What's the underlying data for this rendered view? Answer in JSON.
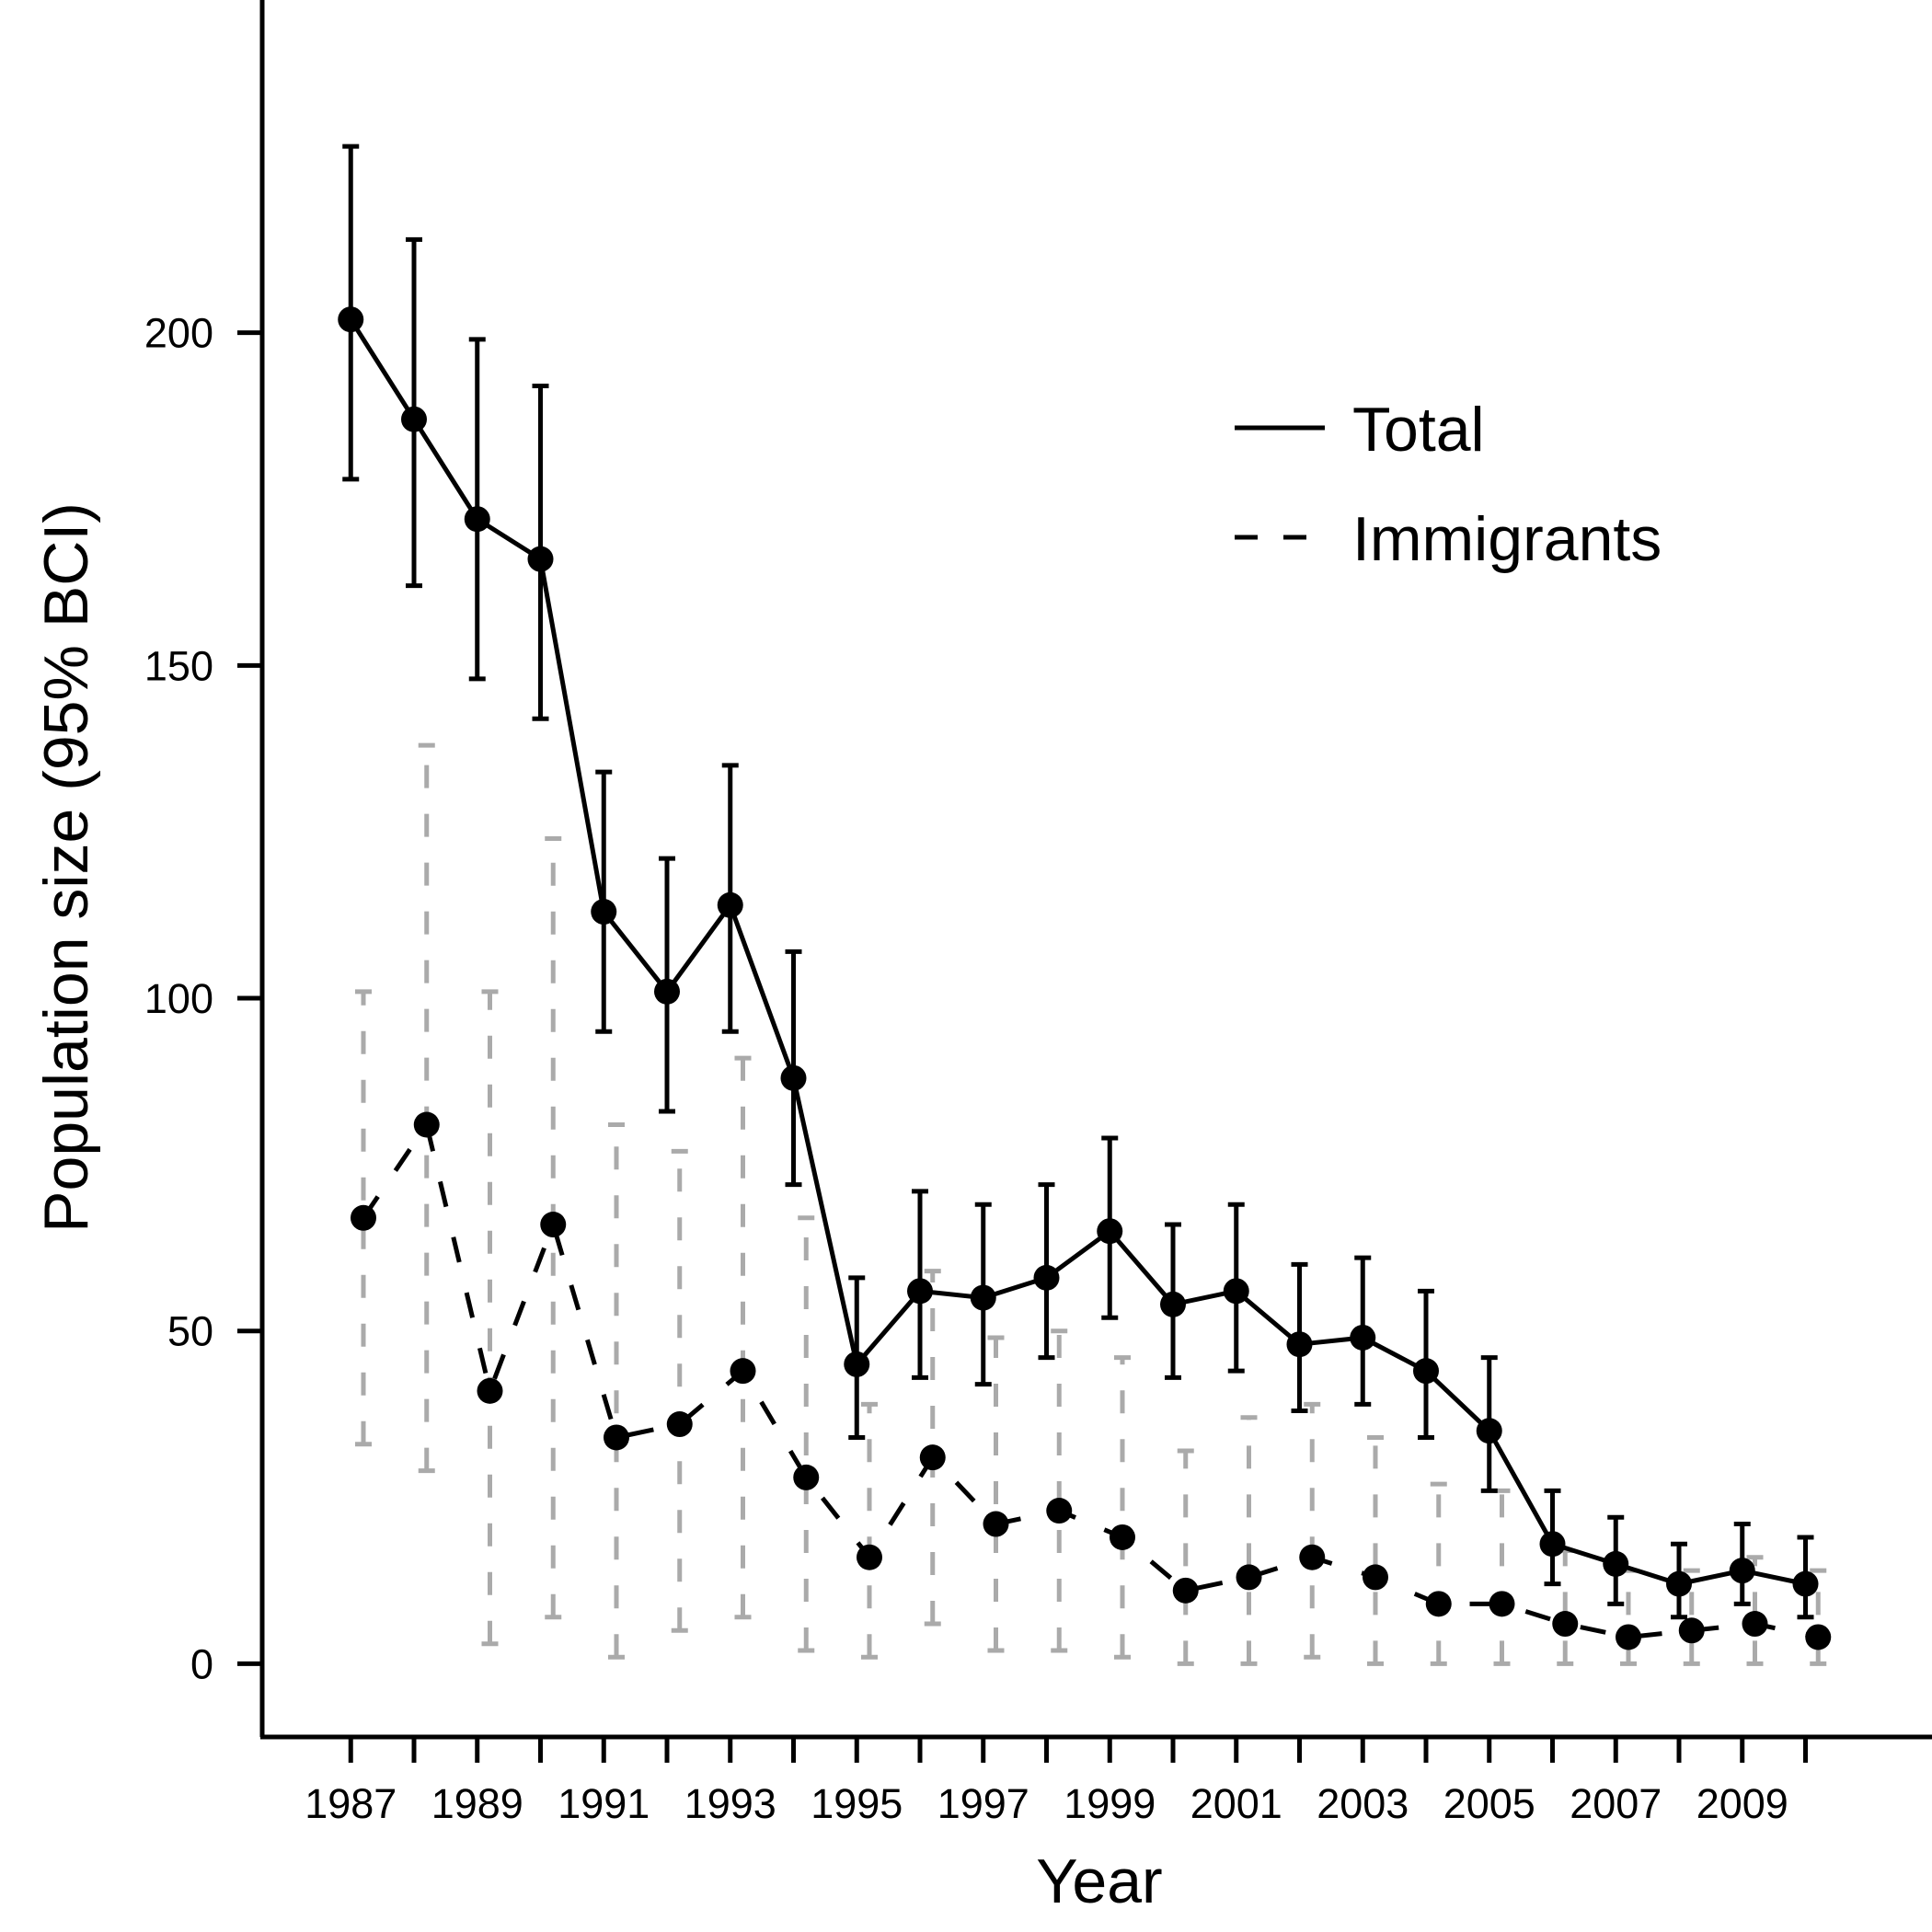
{
  "chart_data": {
    "type": "line",
    "xlabel": "Year",
    "ylabel": "Population size (95% BCI)",
    "xlim": [
      1985.6,
      2012.0
    ],
    "ylim": [
      -11,
      250
    ],
    "y_ticks": [
      0,
      50,
      100,
      150,
      200
    ],
    "x_tick_values": [
      1987,
      1988,
      1989,
      1990,
      1991,
      1992,
      1993,
      1994,
      1995,
      1996,
      1997,
      1998,
      1999,
      2000,
      2001,
      2002,
      2003,
      2004,
      2005,
      2006,
      2007,
      2008,
      2009,
      2010
    ],
    "x_tick_labels": [
      "1987",
      "1989",
      "1991",
      "1993",
      "1995",
      "1997",
      "1999",
      "2001",
      "2003",
      "2005",
      "2007",
      "2009"
    ],
    "legend": {
      "position": "top-right",
      "entries": [
        "Total",
        "Immigrants"
      ]
    },
    "colors": {
      "total": "#000000",
      "immigrants": "#000000",
      "immigrants_ci": "#aaaaaa"
    },
    "series": [
      {
        "name": "Total",
        "style": "solid",
        "x": [
          1987,
          1988,
          1989,
          1990,
          1991,
          1992,
          1993,
          1994,
          1995,
          1996,
          1997,
          1998,
          1999,
          2000,
          2001,
          2002,
          2003,
          2004,
          2005,
          2006,
          2007,
          2008,
          2009,
          2010
        ],
        "values": [
          202,
          187,
          172,
          166,
          113,
          101,
          114,
          88,
          45,
          56,
          55,
          58,
          65,
          54,
          56,
          48,
          49,
          44,
          35,
          18,
          15,
          12,
          14,
          12
        ],
        "lower": [
          178,
          162,
          148,
          142,
          95,
          83,
          95,
          72,
          34,
          43,
          42,
          46,
          52,
          43,
          44,
          38,
          39,
          34,
          26,
          12,
          9,
          7,
          9,
          7
        ],
        "upper": [
          228,
          214,
          199,
          192,
          134,
          121,
          135,
          107,
          58,
          71,
          69,
          72,
          79,
          66,
          69,
          60,
          61,
          56,
          46,
          26,
          22,
          18,
          21,
          19
        ]
      },
      {
        "name": "Immigrants",
        "style": "dashed",
        "x": [
          1987.2,
          1988.2,
          1989.2,
          1990.2,
          1991.2,
          1992.2,
          1993.2,
          1994.2,
          1995.2,
          1996.2,
          1997.2,
          1998.2,
          1999.2,
          2000.2,
          2001.2,
          2002.2,
          2003.2,
          2004.2,
          2005.2,
          2006.2,
          2007.2,
          2008.2,
          2009.2,
          2010.2
        ],
        "values": [
          67,
          81,
          41,
          66,
          34,
          36,
          44,
          28,
          16,
          31,
          21,
          23,
          19,
          11,
          13,
          16,
          13,
          9,
          9,
          6,
          4,
          5,
          6,
          4
        ],
        "lower": [
          33,
          29,
          3,
          7,
          1,
          5,
          7,
          2,
          1,
          6,
          2,
          2,
          1,
          0,
          0,
          1,
          0,
          0,
          0,
          0,
          0,
          0,
          0,
          0
        ],
        "upper": [
          101,
          138,
          101,
          124,
          81,
          77,
          91,
          67,
          39,
          59,
          49,
          50,
          46,
          32,
          37,
          39,
          34,
          27,
          26,
          17,
          14,
          14,
          16,
          14
        ]
      }
    ]
  }
}
